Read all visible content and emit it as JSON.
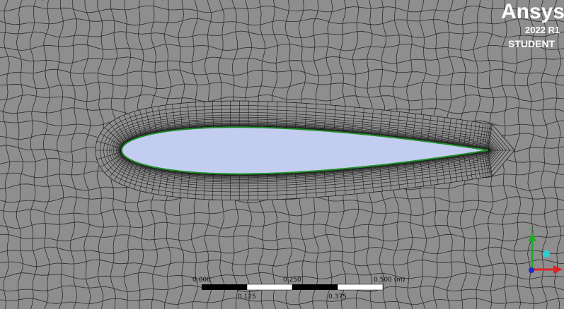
{
  "logo": {
    "brand": "Ansys",
    "version": "2022 R1",
    "edition": "STUDENT"
  },
  "scale_bar": {
    "top_labels": [
      "0.000",
      "0.250",
      "0.500 (m)"
    ],
    "bottom_labels": [
      "0.125",
      "0.375"
    ]
  },
  "triad": {
    "axis_label": "Y"
  }
}
